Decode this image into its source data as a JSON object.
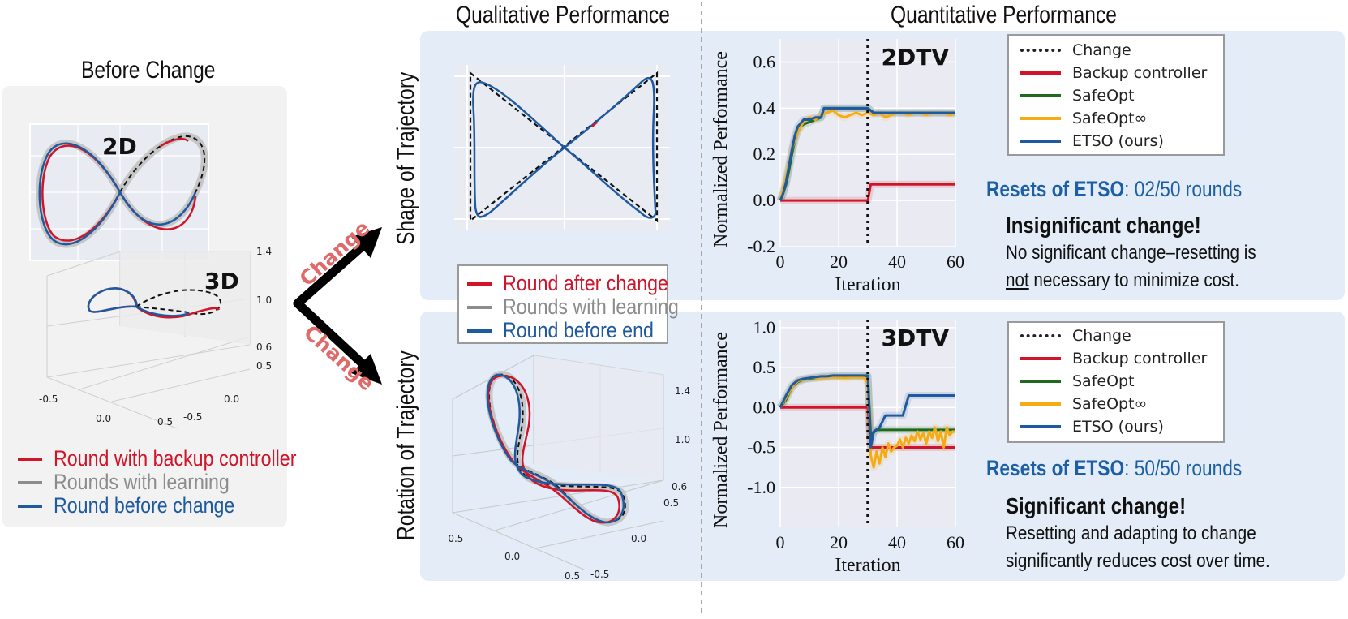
{
  "colors": {
    "red": "#d0152b",
    "gray": "#8c8c8c",
    "blue": "#1f5aa0",
    "green": "#1e6b1e",
    "orange": "#f5ac14",
    "accent_blue": "#1c5fa6",
    "change_pink": "#e06a6a",
    "panel_gray": "#f2f2f2",
    "panel_blue": "#e4ecf7"
  },
  "headers": {
    "qualitative": "Qualitative Performance",
    "quantitative": "Quantitative Performance",
    "before_change": "Before Change"
  },
  "left_panel": {
    "label_2d": "2D",
    "label_3d": "3D",
    "z_ticks": [
      "1.4",
      "1.0",
      "0.6"
    ],
    "y_ticks": [
      "0.5",
      "0.0",
      "-0.5"
    ],
    "x_ticks": [
      "-0.5",
      "0.0",
      "0.5"
    ],
    "legend": [
      {
        "label": "Round with backup controller",
        "color": "red"
      },
      {
        "label": "Rounds with learning",
        "color": "gray"
      },
      {
        "label": "Round before change",
        "color": "blue"
      }
    ]
  },
  "arrows": {
    "up_label": "Change",
    "down_label": "Change"
  },
  "row_labels": {
    "top": "Shape of Trajectory",
    "bottom": "Rotation of Trajectory"
  },
  "middle_legend": [
    {
      "label": "Round after change",
      "color": "red"
    },
    {
      "label": "Rounds with learning",
      "color": "gray"
    },
    {
      "label": "Round before end",
      "color": "blue"
    }
  ],
  "middle_bottom_axes": {
    "z_ticks": [
      "1.4",
      "1.0",
      "0.6"
    ],
    "y_ticks": [
      "0.5",
      "0.0",
      "-0.5"
    ],
    "x_ticks": [
      "-0.5",
      "0.0",
      "0.5"
    ]
  },
  "chart_legend": [
    {
      "label": "Change",
      "style": "dotted",
      "color": "#222222"
    },
    {
      "label": "Backup controller",
      "color": "red"
    },
    {
      "label": "SafeOpt",
      "color": "green"
    },
    {
      "label": "SafeOpt∞",
      "color": "orange"
    },
    {
      "label": "ETSO (ours)",
      "color": "blue"
    }
  ],
  "top_note": {
    "resets_label": "Resets of ETSO",
    "resets_value": ": 02/50 rounds",
    "title": "Insignificant change!",
    "line1": "No significant change–resetting is",
    "line2_underlined": "not",
    "line2_rest": " necessary to minimize cost."
  },
  "bottom_note": {
    "resets_label": "Resets of ETSO",
    "resets_value": ": 50/50 rounds",
    "title": "Significant change!",
    "line1": "Resetting and adapting to change",
    "line2": "significantly reduces cost over time."
  },
  "chart_data": [
    {
      "type": "line",
      "title": "2DTV",
      "xlabel": "Iteration",
      "ylabel": "Normalized Performance",
      "xlim": [
        0,
        60
      ],
      "ylim": [
        -0.2,
        0.7
      ],
      "xticks": [
        0,
        20,
        40,
        60
      ],
      "yticks": [
        -0.2,
        0.0,
        0.2,
        0.4,
        0.6
      ],
      "change_at": 30,
      "grid": true,
      "series": [
        {
          "name": "Backup controller",
          "color": "red",
          "x": [
            0,
            30,
            31,
            60
          ],
          "y": [
            0.0,
            0.0,
            0.07,
            0.07
          ]
        },
        {
          "name": "SafeOpt",
          "color": "green",
          "x": [
            0,
            1,
            2,
            3,
            4,
            5,
            6,
            7,
            8,
            10,
            12,
            14,
            15,
            18,
            20,
            22,
            25,
            28,
            30,
            32,
            35,
            40,
            45,
            50,
            55,
            60
          ],
          "y": [
            0.0,
            0.03,
            0.07,
            0.13,
            0.2,
            0.26,
            0.3,
            0.32,
            0.33,
            0.34,
            0.35,
            0.36,
            0.4,
            0.4,
            0.4,
            0.4,
            0.4,
            0.4,
            0.4,
            0.38,
            0.38,
            0.38,
            0.38,
            0.38,
            0.38,
            0.38
          ]
        },
        {
          "name": "SafeOpt∞",
          "color": "orange",
          "x": [
            0,
            2,
            4,
            6,
            8,
            10,
            12,
            14,
            16,
            18,
            20,
            22,
            24,
            26,
            28,
            30,
            32,
            34,
            36,
            38,
            40,
            42,
            44,
            46,
            48,
            50,
            52,
            54,
            56,
            58,
            60
          ],
          "y": [
            0.0,
            0.1,
            0.22,
            0.3,
            0.34,
            0.36,
            0.35,
            0.37,
            0.38,
            0.39,
            0.37,
            0.36,
            0.37,
            0.38,
            0.37,
            0.38,
            0.37,
            0.38,
            0.36,
            0.37,
            0.38,
            0.38,
            0.37,
            0.38,
            0.38,
            0.37,
            0.38,
            0.38,
            0.38,
            0.37,
            0.38
          ]
        },
        {
          "name": "ETSO (ours)",
          "color": "blue",
          "x": [
            0,
            1,
            2,
            3,
            4,
            5,
            6,
            8,
            10,
            12,
            14,
            15,
            20,
            25,
            30,
            32,
            35,
            40,
            45,
            50,
            55,
            60
          ],
          "y": [
            0.0,
            0.03,
            0.08,
            0.15,
            0.22,
            0.28,
            0.32,
            0.35,
            0.35,
            0.36,
            0.36,
            0.4,
            0.4,
            0.4,
            0.4,
            0.38,
            0.38,
            0.38,
            0.38,
            0.38,
            0.38,
            0.38
          ]
        }
      ]
    },
    {
      "type": "line",
      "title": "3DTV",
      "xlabel": "Iteration",
      "ylabel": "Normalized Performance",
      "xlim": [
        0,
        60
      ],
      "ylim": [
        -1.5,
        1.1
      ],
      "xticks": [
        0,
        20,
        40,
        60
      ],
      "yticks": [
        -1.0,
        -0.5,
        0.0,
        0.5,
        1.0
      ],
      "change_at": 30,
      "grid": true,
      "series": [
        {
          "name": "Backup controller",
          "color": "red",
          "x": [
            0,
            30,
            31,
            60
          ],
          "y": [
            0.0,
            0.0,
            -0.5,
            -0.5
          ]
        },
        {
          "name": "SafeOpt",
          "color": "green",
          "x": [
            0,
            2,
            4,
            6,
            8,
            10,
            15,
            20,
            25,
            30,
            31,
            33,
            60
          ],
          "y": [
            0.0,
            0.1,
            0.25,
            0.32,
            0.35,
            0.36,
            0.38,
            0.39,
            0.39,
            0.39,
            -0.35,
            -0.28,
            -0.28
          ]
        },
        {
          "name": "SafeOpt∞",
          "color": "orange",
          "x": [
            0,
            2,
            4,
            6,
            8,
            10,
            14,
            18,
            22,
            26,
            29,
            30,
            31,
            32,
            33,
            34,
            35,
            36,
            37,
            38,
            39,
            40,
            41,
            42,
            43,
            44,
            45,
            46,
            47,
            48,
            49,
            50,
            51,
            52,
            53,
            54,
            55,
            56,
            57,
            58,
            59,
            60
          ],
          "y": [
            0.0,
            0.12,
            0.25,
            0.33,
            0.35,
            0.37,
            0.37,
            0.38,
            0.37,
            0.38,
            0.37,
            0.3,
            -0.6,
            -0.75,
            -0.55,
            -0.7,
            -0.5,
            -0.62,
            -0.45,
            -0.55,
            -0.5,
            -0.48,
            -0.4,
            -0.5,
            -0.38,
            -0.45,
            -0.35,
            -0.42,
            -0.3,
            -0.4,
            -0.32,
            -0.45,
            -0.3,
            -0.38,
            -0.25,
            -0.42,
            -0.3,
            -0.5,
            -0.25,
            -0.35,
            -0.3,
            -0.3
          ]
        },
        {
          "name": "ETSO (ours)",
          "color": "blue",
          "x": [
            0,
            2,
            4,
            6,
            8,
            10,
            12,
            14,
            16,
            18,
            20,
            25,
            30,
            31,
            32,
            34,
            36,
            38,
            40,
            42,
            44,
            46,
            48,
            50,
            60
          ],
          "y": [
            0.0,
            0.15,
            0.28,
            0.34,
            0.36,
            0.37,
            0.38,
            0.39,
            0.39,
            0.4,
            0.4,
            0.4,
            0.4,
            -0.5,
            -0.3,
            -0.25,
            -0.1,
            -0.1,
            -0.1,
            -0.1,
            0.15,
            0.15,
            0.15,
            0.15,
            0.15
          ]
        }
      ]
    }
  ]
}
